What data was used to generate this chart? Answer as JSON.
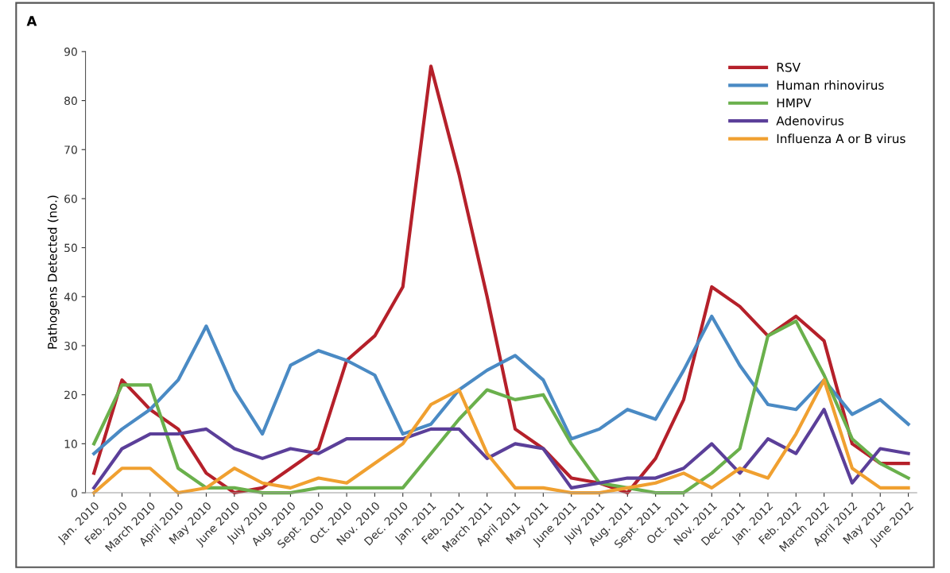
{
  "chart_data": {
    "type": "line",
    "ylabel": "Pathogens Detected (no.)",
    "annotations": [
      "A"
    ],
    "categories": [
      "Jan. 2010",
      "Feb. 2010",
      "March 2010",
      "April 2010",
      "May 2010",
      "June 2010",
      "July 2010",
      "Aug. 2010",
      "Sept. 2010",
      "Oct. 2010",
      "Nov. 2010",
      "Dec. 2010",
      "Jan. 2011",
      "Feb. 2011",
      "March 2011",
      "April 2011",
      "May 2011",
      "June 2011",
      "July 2011",
      "Aug. 2011",
      "Sept. 2011",
      "Oct. 2011",
      "Nov. 2011",
      "Dec. 2011",
      "Jan. 2012",
      "Feb. 2012",
      "March 2012",
      "April 2012",
      "May 2012",
      "June 2012"
    ],
    "series": [
      {
        "name": "RSV",
        "color": "#b5202a",
        "values": [
          4,
          23,
          17,
          13,
          4,
          0,
          1,
          5,
          9,
          27,
          32,
          42,
          87,
          65,
          40,
          13,
          9,
          3,
          2,
          0,
          7,
          19,
          42,
          38,
          32,
          36,
          31,
          10,
          6,
          6
        ]
      },
      {
        "name": "Human rhinovirus",
        "color": "#4a8ac4",
        "values": [
          8,
          13,
          17,
          23,
          34,
          21,
          12,
          26,
          29,
          27,
          24,
          12,
          14,
          21,
          25,
          28,
          23,
          11,
          13,
          17,
          15,
          25,
          36,
          26,
          18,
          17,
          23,
          16,
          19,
          14
        ]
      },
      {
        "name": "HMPV",
        "color": "#6ab04c",
        "values": [
          10,
          22,
          22,
          5,
          1,
          1,
          0,
          0,
          1,
          1,
          1,
          1,
          8,
          15,
          21,
          19,
          20,
          10,
          2,
          1,
          0,
          0,
          4,
          9,
          32,
          35,
          24,
          11,
          6,
          3
        ]
      },
      {
        "name": "Adenovirus",
        "color": "#5b3f99",
        "values": [
          1,
          9,
          12,
          12,
          13,
          9,
          7,
          9,
          8,
          11,
          11,
          11,
          13,
          13,
          7,
          10,
          9,
          1,
          2,
          3,
          3,
          5,
          10,
          4,
          11,
          8,
          17,
          2,
          9,
          8
        ]
      },
      {
        "name": "Influenza A or B virus",
        "color": "#f0a030",
        "values": [
          0,
          5,
          5,
          0,
          1,
          5,
          2,
          1,
          3,
          2,
          6,
          10,
          18,
          21,
          8,
          1,
          1,
          0,
          0,
          1,
          2,
          4,
          1,
          5,
          3,
          12,
          23,
          5,
          1,
          1
        ]
      }
    ],
    "ylim": [
      0,
      90
    ],
    "yticks": [
      0,
      10,
      20,
      30,
      40,
      50,
      60,
      70,
      80,
      90
    ],
    "grid": false,
    "legend": "top right",
    "marker": "none",
    "line_style": "solid"
  }
}
